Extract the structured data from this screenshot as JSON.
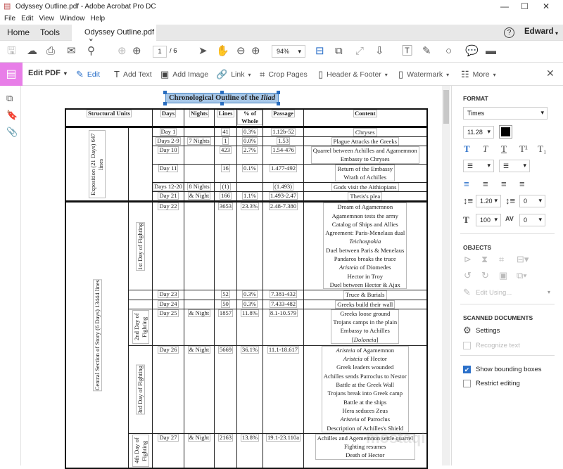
{
  "window": {
    "title": "Odyssey Outline.pdf - Adobe Acrobat Pro DC",
    "controls": [
      "—",
      "☐",
      "✕"
    ]
  },
  "menu": [
    "File",
    "Edit",
    "View",
    "Window",
    "Help"
  ],
  "tabs": {
    "home": "Home",
    "tools": "Tools",
    "document": "Odyssey Outline.pdf",
    "close": "×",
    "help": "?",
    "user": "Edward"
  },
  "toolbar": {
    "page_current": "1",
    "page_total": "/ 6",
    "zoom": "94%"
  },
  "editbar": {
    "title": "Edit PDF",
    "items": [
      "Edit",
      "Add Text",
      "Add Image",
      "Link",
      "Crop Pages",
      "Header & Footer",
      "Watermark",
      "More"
    ],
    "close": "✕"
  },
  "panel": {
    "format_heading": "FORMAT",
    "font": "Times",
    "size": "11.28",
    "text_color": "#000000",
    "line_spacing": "1.20",
    "paragraph_spacing": "0",
    "scale": "100",
    "char_spacing": "0",
    "objects_heading": "OBJECTS",
    "edit_using": "Edit Using...",
    "scanned_heading": "SCANNED DOCUMENTS",
    "settings": "Settings",
    "recognize": "Recognize text",
    "show_boxes": "Show bounding boxes",
    "show_boxes_checked": true,
    "restrict": "Restrict editing",
    "restrict_checked": false
  },
  "accent": "#2b70c9",
  "edit_tool_color": "#e87ee8",
  "pdf": {
    "title": "Chronological Outline of the ",
    "title_em": "Iliad",
    "headers": [
      "Structural Units",
      "Days",
      "Nights",
      "Lines",
      "% of Whole",
      "Passage",
      "Content"
    ],
    "sections": [
      {
        "label": "Exposition (21 Days) 647 lines"
      },
      {
        "label": "Central Section of Story (6 Days) 13444 lines"
      }
    ],
    "rows": [
      {
        "days": "Day 1",
        "nights": "",
        "lines": "41",
        "pct": "0.3%",
        "passage": "1.12b-52",
        "content": [
          "Chryses"
        ]
      },
      {
        "days": "Days 2-9",
        "nights": "7 Nights",
        "lines": "1",
        "pct": "0.0%",
        "passage": "1.53",
        "content": [
          "Plague Attacks the Greeks"
        ]
      },
      {
        "days": "Day 10",
        "nights": "",
        "lines": "423",
        "pct": "2.7%",
        "passage": "1.54-476",
        "content": [
          "Quarrel between Achilles and Agamemnon",
          "Embassy to Chryses"
        ]
      },
      {
        "days": "Day 11",
        "nights": "",
        "lines": "16",
        "pct": "0.1%",
        "passage": "1.477-492",
        "content": [
          "Return of the Embassy",
          "Wrath of Achilles"
        ]
      },
      {
        "days": "Days 12-20",
        "nights": "8 Nights",
        "lines": "(1)",
        "pct": "",
        "passage": "(1.493)",
        "content": [
          "Gods visit the Aithiopians"
        ]
      },
      {
        "days": "Day 21",
        "nights": "& Night",
        "lines": "166",
        "pct": "1.1%",
        "passage": "1.493-2.47",
        "content": [
          "Thetis's plea"
        ]
      },
      {
        "unit": "1st Day of Fighting",
        "days": "Day 22",
        "nights": "",
        "lines": "3653",
        "pct": "23.3%",
        "passage": "2.48-7.380",
        "content": [
          "Dream of Agamemnon",
          "Agamemnon tests the army",
          "Catalog of Ships and Allies",
          "Agreement: Paris-Menelaus dual",
          "*Teichospokia",
          "Duel between Paris & Menelaus",
          "Pandaros breaks the truce",
          "*Aristeia| of Diomedes",
          "Hector in Troy",
          "Duel between Hector & Ajax"
        ]
      },
      {
        "days": "Day 23",
        "nights": "",
        "lines": "52",
        "pct": "0.3%",
        "passage": "7.381-432",
        "content": [
          "Truce & Burials"
        ]
      },
      {
        "days": "Day 24",
        "nights": "",
        "lines": "50",
        "pct": "0.3%",
        "passage": "7.433-482",
        "content": [
          "Greeks build their wall"
        ]
      },
      {
        "unit": "2nd Day of Fighting",
        "days": "Day 25",
        "nights": "& Night",
        "lines": "1857",
        "pct": "11.8%",
        "passage": "8.1-10.579",
        "content": [
          "Greeks loose ground",
          "Trojans camps in the plain",
          "Embassy to Achilles",
          "[*Doloneia|]"
        ]
      },
      {
        "unit": "3rd Day of Fighting",
        "days": "Day 26",
        "nights": "& Night",
        "lines": "5669",
        "pct": "36.1%",
        "passage": "11.1-18.617",
        "content": [
          "*Aristeia| of Agamemnon",
          "*Aristeia| of Hector",
          "Greek leaders wounded",
          "Achilles sends Patroclus to Nestor",
          "Battle at the Greek Wall",
          "Trojans break into Greek camp",
          "Battle at the ships",
          "Hera seduces Zeus",
          "*Aristeia| of Patroclus",
          "Description of Achilles's Shield"
        ]
      },
      {
        "unit": "4th Day of Fighting",
        "days": "Day 27",
        "nights": "& Night",
        "lines": "2163",
        "pct": "13.8%",
        "passage": "19.1-23.110a",
        "content": [
          "Achilles and Agememnon settle quarrel",
          "Fighting resumes",
          "Death of Hector"
        ]
      }
    ]
  }
}
